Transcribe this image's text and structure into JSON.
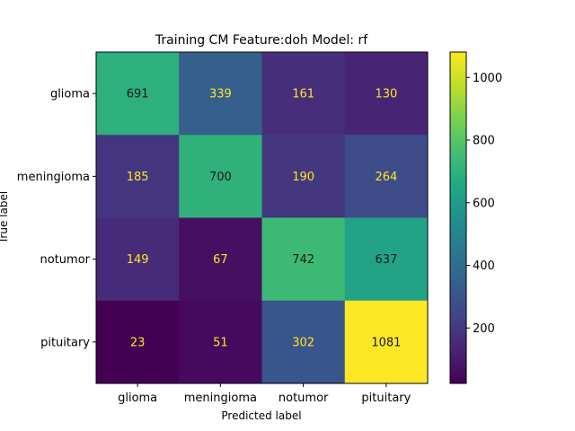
{
  "chart_data": {
    "type": "heatmap",
    "title": "Training CM Feature:doh Model: rf",
    "xlabel": "Predicted label",
    "ylabel": "True label",
    "x_categories": [
      "glioma",
      "meningioma",
      "notumor",
      "pituitary"
    ],
    "y_categories": [
      "glioma",
      "meningioma",
      "notumor",
      "pituitary"
    ],
    "matrix": [
      [
        691,
        339,
        161,
        130
      ],
      [
        185,
        700,
        190,
        264
      ],
      [
        149,
        67,
        742,
        637
      ],
      [
        23,
        51,
        302,
        1081
      ]
    ],
    "colormap": "viridis",
    "colorbar": {
      "ticks": [
        200,
        400,
        600,
        800,
        1000
      ],
      "range": [
        23,
        1081
      ]
    },
    "text_colors": {
      "light": "#fde725",
      "dark": "#1a1a1a"
    }
  }
}
